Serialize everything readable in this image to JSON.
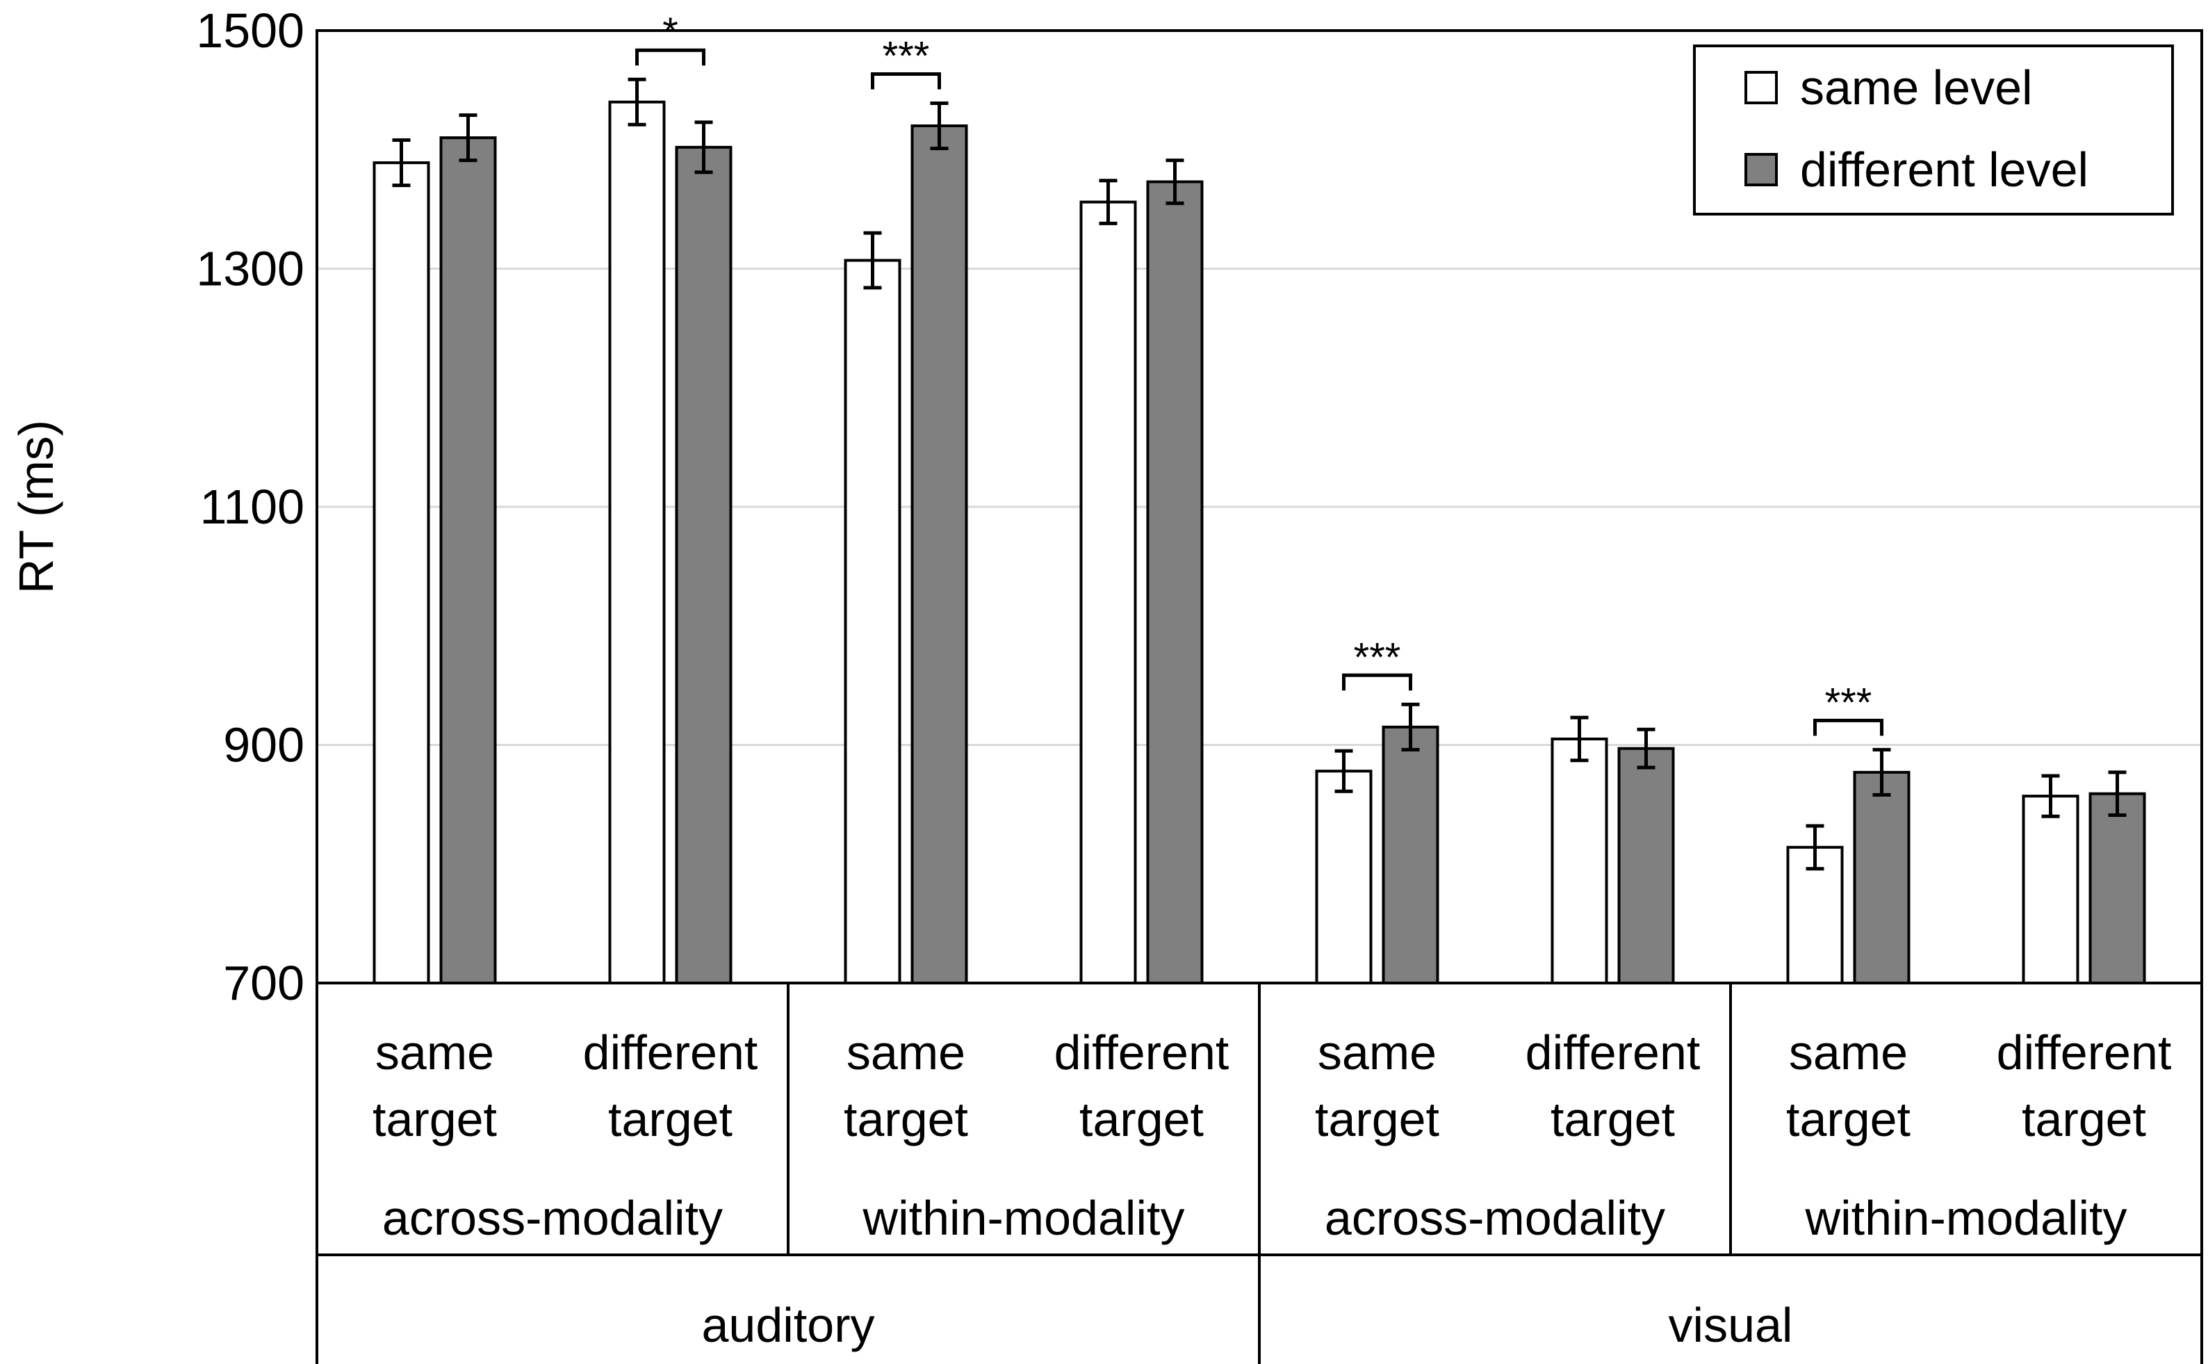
{
  "chart_data": {
    "type": "bar",
    "title": "",
    "xlabel": "",
    "ylabel": "RT (ms)",
    "ylim": [
      700,
      1500
    ],
    "yticks": [
      700,
      900,
      1100,
      1300,
      1500
    ],
    "grid": true,
    "legend_position": "top-right",
    "categories": [
      {
        "label1": "same",
        "label2": "target"
      },
      {
        "label1": "different",
        "label2": "target"
      },
      {
        "label1": "same",
        "label2": "target"
      },
      {
        "label1": "different",
        "label2": "target"
      },
      {
        "label1": "same",
        "label2": "target"
      },
      {
        "label1": "different",
        "label2": "target"
      },
      {
        "label1": "same",
        "label2": "target"
      },
      {
        "label1": "different",
        "label2": "target"
      }
    ],
    "modality_groups": [
      "across-modality",
      "within-modality",
      "across-modality",
      "within-modality"
    ],
    "target_groups": [
      "auditory",
      "visual"
    ],
    "series": [
      {
        "name": "same level",
        "color": "#ffffff",
        "values": [
          1389,
          1440,
          1307,
          1356,
          878,
          905,
          814,
          857
        ],
        "errors": [
          19,
          19,
          23,
          18,
          17,
          18,
          18,
          17
        ]
      },
      {
        "name": "different level",
        "color": "#808080",
        "values": [
          1410,
          1402,
          1420,
          1373,
          915,
          897,
          877,
          859
        ],
        "errors": [
          19,
          21,
          19,
          18,
          19,
          16,
          19,
          18
        ]
      }
    ],
    "annotations": [
      {
        "category_index": 1,
        "text": "*"
      },
      {
        "category_index": 2,
        "text": "***"
      },
      {
        "category_index": 4,
        "text": "***"
      },
      {
        "category_index": 6,
        "text": "***"
      }
    ]
  }
}
